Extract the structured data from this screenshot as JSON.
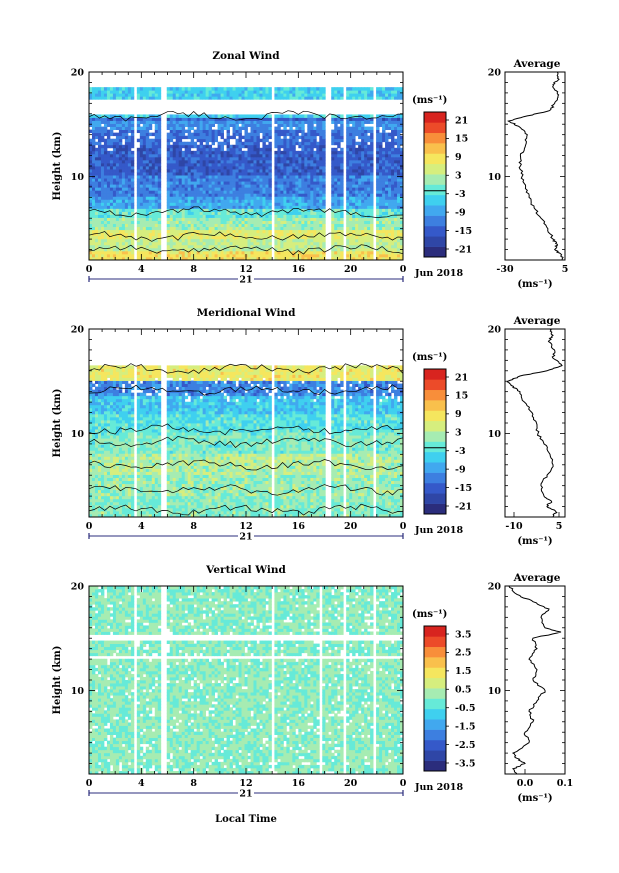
{
  "figure": {
    "xlabel": "Local Time",
    "date_label": "Jun 2018",
    "day_label": "21",
    "unit_label": "(ms⁻¹)",
    "colors": [
      "#2b2d7c",
      "#2f46a6",
      "#3559c9",
      "#3d7fe0",
      "#41a8ef",
      "#3fd0ef",
      "#66ead8",
      "#a6ecb2",
      "#d6ee7e",
      "#f5e65e",
      "#f9c04c",
      "#f88e3a",
      "#ec4b29",
      "#d8241f"
    ]
  },
  "chart_data": [
    {
      "type": "heatmap",
      "title": "Zonal Wind",
      "ylabel": "Height (km)",
      "x_ticks": [
        "0",
        "4",
        "8",
        "12",
        "16",
        "20",
        "0"
      ],
      "y_ticks": [
        "10",
        "20"
      ],
      "xlim": [
        0,
        24
      ],
      "ylim": [
        2,
        20
      ],
      "colorbar": {
        "ticks": [
          "21",
          "15",
          "9",
          "3",
          "-3",
          "-9",
          "-15",
          "-21"
        ],
        "range": [
          -24,
          24
        ]
      },
      "profile_series": [
        {
          "height": 2.0,
          "value": 3.5
        },
        {
          "height": 2.5,
          "value": 3.0
        },
        {
          "height": 3.0,
          "value": -1.0
        },
        {
          "height": 3.5,
          "value": 0.5
        },
        {
          "height": 4.0,
          "value": -2.0
        },
        {
          "height": 5.0,
          "value": -5.0
        },
        {
          "height": 6.0,
          "value": -9.0
        },
        {
          "height": 7.0,
          "value": -13.0
        },
        {
          "height": 8.0,
          "value": -16.0
        },
        {
          "height": 9.0,
          "value": -18.0
        },
        {
          "height": 10.0,
          "value": -20.0
        },
        {
          "height": 11.0,
          "value": -21.0
        },
        {
          "height": 12.0,
          "value": -21.0
        },
        {
          "height": 13.0,
          "value": -18.0
        },
        {
          "height": 14.0,
          "value": -17.0
        },
        {
          "height": 14.8,
          "value": -22.0
        },
        {
          "height": 15.3,
          "value": -28.0
        },
        {
          "height": 15.8,
          "value": -17.0
        },
        {
          "height": 16.3,
          "value": -4.0
        },
        {
          "height": 17.0,
          "value": -1.0
        },
        {
          "height": 17.6,
          "value": 1.0
        },
        {
          "height": 18.2,
          "value": 0.0
        },
        {
          "height": 18.8,
          "value": -2.0
        },
        {
          "height": 19.3,
          "value": 1.5
        },
        {
          "height": 20.0,
          "value": 0.5
        }
      ],
      "profile_x_ticks": [
        "-30",
        "5"
      ],
      "profile_xlim": [
        -30,
        5
      ]
    },
    {
      "type": "heatmap",
      "title": "Meridional Wind",
      "ylabel": "Height (km)",
      "x_ticks": [
        "0",
        "4",
        "8",
        "12",
        "16",
        "20",
        "0"
      ],
      "y_ticks": [
        "10",
        "20"
      ],
      "xlim": [
        0,
        24
      ],
      "ylim": [
        2,
        20
      ],
      "colorbar": {
        "ticks": [
          "21",
          "15",
          "9",
          "3",
          "-3",
          "-9",
          "-15",
          "-21"
        ],
        "range": [
          -24,
          24
        ]
      },
      "profile_series": [
        {
          "height": 2.0,
          "value": 3.0
        },
        {
          "height": 2.5,
          "value": 4.0
        },
        {
          "height": 3.0,
          "value": 1.0
        },
        {
          "height": 3.5,
          "value": 2.5
        },
        {
          "height": 4.0,
          "value": 0.0
        },
        {
          "height": 5.0,
          "value": -1.0
        },
        {
          "height": 6.0,
          "value": 1.0
        },
        {
          "height": 7.0,
          "value": 3.0
        },
        {
          "height": 8.0,
          "value": 2.0
        },
        {
          "height": 9.0,
          "value": 0.0
        },
        {
          "height": 10.0,
          "value": -2.0
        },
        {
          "height": 11.0,
          "value": -2.5
        },
        {
          "height": 12.0,
          "value": -4.0
        },
        {
          "height": 13.0,
          "value": -6.5
        },
        {
          "height": 14.0,
          "value": -8.0
        },
        {
          "height": 14.6,
          "value": -11.0
        },
        {
          "height": 15.0,
          "value": -12.0
        },
        {
          "height": 15.5,
          "value": -8.0
        },
        {
          "height": 16.0,
          "value": 1.0
        },
        {
          "height": 16.5,
          "value": 6.0
        },
        {
          "height": 17.2,
          "value": 3.0
        },
        {
          "height": 18.0,
          "value": 3.5
        },
        {
          "height": 18.8,
          "value": 1.5
        },
        {
          "height": 19.4,
          "value": 3.0
        },
        {
          "height": 20.0,
          "value": 2.0
        }
      ],
      "profile_x_ticks": [
        "-10",
        "5"
      ],
      "profile_xlim": [
        -13,
        7
      ]
    },
    {
      "type": "heatmap",
      "title": "Vertical Wind",
      "ylabel": "Height (km)",
      "x_ticks": [
        "0",
        "4",
        "8",
        "12",
        "16",
        "20",
        "0"
      ],
      "y_ticks": [
        "10",
        "20"
      ],
      "xlim": [
        0,
        24
      ],
      "ylim": [
        2,
        20
      ],
      "colorbar": {
        "ticks": [
          "3.5",
          "2.5",
          "1.5",
          "0.5",
          "-0.5",
          "-1.5",
          "-2.5",
          "-3.5"
        ],
        "range": [
          -4,
          4
        ]
      },
      "profile_series": [
        {
          "height": 2.0,
          "value": -0.02
        },
        {
          "height": 2.5,
          "value": -0.03
        },
        {
          "height": 3.0,
          "value": 0.0
        },
        {
          "height": 3.5,
          "value": -0.02
        },
        {
          "height": 4.0,
          "value": -0.03
        },
        {
          "height": 5.0,
          "value": 0.01
        },
        {
          "height": 6.0,
          "value": 0.0
        },
        {
          "height": 7.0,
          "value": 0.02
        },
        {
          "height": 8.0,
          "value": 0.01
        },
        {
          "height": 9.0,
          "value": 0.03
        },
        {
          "height": 10.0,
          "value": 0.05
        },
        {
          "height": 11.0,
          "value": 0.02
        },
        {
          "height": 12.0,
          "value": 0.03
        },
        {
          "height": 13.0,
          "value": 0.01
        },
        {
          "height": 14.0,
          "value": 0.03
        },
        {
          "height": 15.0,
          "value": 0.02
        },
        {
          "height": 15.6,
          "value": 0.09
        },
        {
          "height": 16.0,
          "value": 0.05
        },
        {
          "height": 17.0,
          "value": 0.04
        },
        {
          "height": 17.8,
          "value": 0.06
        },
        {
          "height": 18.5,
          "value": 0.02
        },
        {
          "height": 19.2,
          "value": -0.02
        },
        {
          "height": 20.0,
          "value": -0.04
        }
      ],
      "profile_x_ticks": [
        "0.0",
        "0.1"
      ],
      "profile_xlim": [
        -0.05,
        0.1
      ]
    }
  ]
}
